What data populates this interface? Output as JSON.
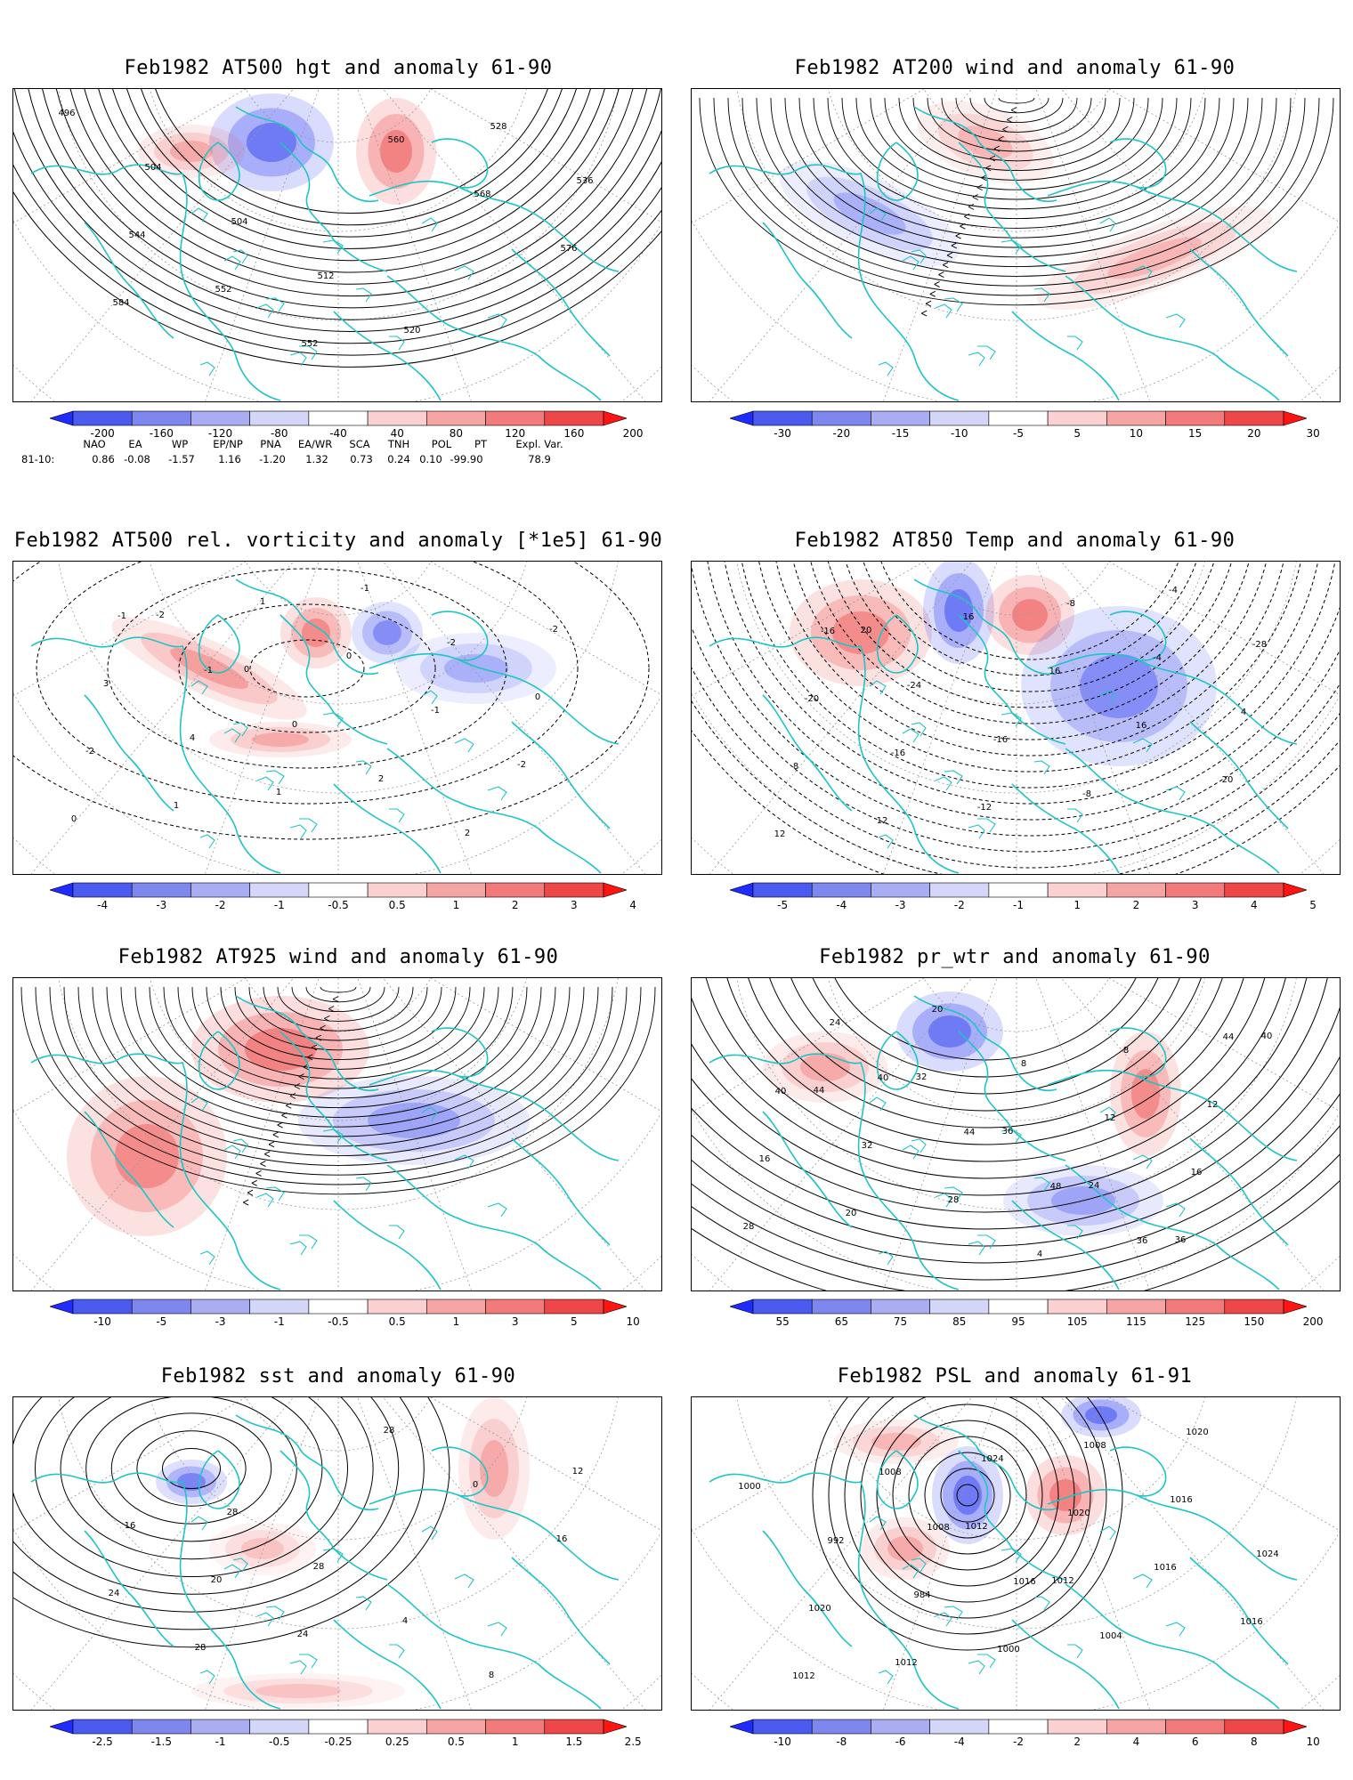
{
  "panels": [
    {
      "id": "hgt500",
      "title": "Feb1982 AT500 hgt and anomaly 61-90",
      "contour_labels": [
        "496",
        "504",
        "504",
        "512",
        "520",
        "528",
        "536",
        "544",
        "552",
        "552",
        "560",
        "568",
        "576",
        "584"
      ],
      "colorbar": {
        "ticks": [
          "-200",
          "-160",
          "-120",
          "-80",
          "-40",
          "40",
          "80",
          "120",
          "160",
          "200"
        ],
        "colors": [
          "#1f2bff",
          "#4b5bf0",
          "#7d87ee",
          "#a9aef3",
          "#d4d6f8",
          "#ffffff",
          "#fbd0d0",
          "#f6a5a5",
          "#f27a7a",
          "#ee4747",
          "#ff1414"
        ]
      }
    },
    {
      "id": "wind200",
      "title": "Feb1982 AT200 wind and anomaly 61-90",
      "contour_labels": [],
      "colorbar": {
        "ticks": [
          "-30",
          "-20",
          "-15",
          "-10",
          "-5",
          "5",
          "10",
          "15",
          "20",
          "30"
        ],
        "colors": [
          "#1f2bff",
          "#4b5bf0",
          "#7d87ee",
          "#a9aef3",
          "#d4d6f8",
          "#ffffff",
          "#fbd0d0",
          "#f6a5a5",
          "#f27a7a",
          "#ee4747",
          "#ff1414"
        ]
      }
    },
    {
      "id": "vort500",
      "title": "Feb1982 AT500 rel. vorticity and anomaly [*1e5] 61-90",
      "contour_labels": [
        "-1",
        "-1",
        "0",
        "2",
        "2",
        "-2",
        "3",
        "4",
        "1",
        "-1",
        "-2",
        "0",
        "-2",
        "1",
        "1",
        "0",
        "-1",
        "-2",
        "0",
        "-2",
        "0"
      ],
      "colorbar": {
        "ticks": [
          "-4",
          "-3",
          "-2",
          "-1",
          "-0.5",
          "0.5",
          "1",
          "2",
          "3",
          "4"
        ],
        "colors": [
          "#1f2bff",
          "#4b5bf0",
          "#7d87ee",
          "#a9aef3",
          "#d4d6f8",
          "#ffffff",
          "#fbd0d0",
          "#f6a5a5",
          "#f27a7a",
          "#ee4747",
          "#ff1414"
        ]
      }
    },
    {
      "id": "temp850",
      "title": "Feb1982 AT850 Temp and anomaly 61-90",
      "contour_labels": [
        "-16",
        "-24",
        "-16",
        "-8",
        "-4",
        "-28",
        "-20",
        "-16",
        "-12",
        "-8",
        "-4",
        "4",
        "8",
        "12",
        "16",
        "16",
        "16",
        "20",
        "12",
        "20"
      ],
      "colorbar": {
        "ticks": [
          "-5",
          "-4",
          "-3",
          "-2",
          "-1",
          "1",
          "2",
          "3",
          "4",
          "5"
        ],
        "colors": [
          "#1f2bff",
          "#4b5bf0",
          "#7d87ee",
          "#a9aef3",
          "#d4d6f8",
          "#ffffff",
          "#fbd0d0",
          "#f6a5a5",
          "#f27a7a",
          "#ee4747",
          "#ff1414"
        ]
      }
    },
    {
      "id": "wind925",
      "title": "Feb1982 AT925 wind and anomaly 61-90",
      "contour_labels": [],
      "colorbar": {
        "ticks": [
          "-10",
          "-5",
          "-3",
          "-1",
          "-0.5",
          "0.5",
          "1",
          "3",
          "5",
          "10"
        ],
        "colors": [
          "#1f2bff",
          "#4b5bf0",
          "#7d87ee",
          "#a9aef3",
          "#d4d6f8",
          "#ffffff",
          "#fbd0d0",
          "#f6a5a5",
          "#f27a7a",
          "#ee4747",
          "#ff1414"
        ]
      }
    },
    {
      "id": "prwtr",
      "title": "Feb1982 pr_wtr and anomaly 61-90",
      "contour_labels": [
        "40",
        "44",
        "48",
        "36",
        "44",
        "40",
        "32",
        "28",
        "4",
        "8",
        "12",
        "16",
        "20",
        "20",
        "8",
        "12",
        "16",
        "28",
        "24",
        "32",
        "36",
        "24",
        "36",
        "40",
        "44"
      ],
      "colorbar": {
        "ticks": [
          "55",
          "65",
          "75",
          "85",
          "95",
          "105",
          "115",
          "125",
          "150",
          "200"
        ],
        "colors": [
          "#1f2bff",
          "#4b5bf0",
          "#7d87ee",
          "#a9aef3",
          "#d4d6f8",
          "#ffffff",
          "#fbd0d0",
          "#f6a5a5",
          "#f27a7a",
          "#ee4747",
          "#ff1414"
        ]
      }
    },
    {
      "id": "sst",
      "title": "Feb1982 sst and anomaly 61-90",
      "contour_labels": [
        "28",
        "28",
        "4",
        "8",
        "12",
        "16",
        "20",
        "24",
        "28",
        "0",
        "16",
        "24",
        "28"
      ],
      "colorbar": {
        "ticks": [
          "-2.5",
          "-1.5",
          "-1",
          "-0.5",
          "-0.25",
          "0.25",
          "0.5",
          "1",
          "1.5",
          "2.5"
        ],
        "colors": [
          "#1f2bff",
          "#4b5bf0",
          "#7d87ee",
          "#a9aef3",
          "#d4d6f8",
          "#ffffff",
          "#fbd0d0",
          "#f6a5a5",
          "#f27a7a",
          "#ee4747",
          "#ff1414"
        ]
      }
    },
    {
      "id": "psl",
      "title": "Feb1982 PSL and anomaly 61-91",
      "contour_labels": [
        "1008",
        "1016",
        "1004",
        "1020",
        "1000",
        "992",
        "984",
        "1000",
        "1008",
        "1016",
        "1024",
        "1020",
        "1012",
        "1024",
        "1020",
        "1016",
        "1016",
        "1012",
        "1008",
        "1012",
        "1012"
      ],
      "colorbar": {
        "ticks": [
          "-10",
          "-8",
          "-6",
          "-4",
          "-2",
          "2",
          "4",
          "6",
          "8",
          "10"
        ],
        "colors": [
          "#1f2bff",
          "#4b5bf0",
          "#7d87ee",
          "#a9aef3",
          "#d4d6f8",
          "#ffffff",
          "#fbd0d0",
          "#f6a5a5",
          "#f27a7a",
          "#ee4747",
          "#ff1414"
        ]
      }
    }
  ],
  "teleconnections": {
    "headers": [
      "NAO",
      "EA",
      "WP",
      "EP/NP",
      "PNA",
      "EA/WR",
      "SCA",
      "TNH",
      "POL",
      "PT",
      "Expl. Var."
    ],
    "row_label": "81-10:",
    "values": [
      "0.86",
      "-0.08",
      "-1.57",
      "1.16",
      "-1.20",
      "1.32",
      "0.73",
      "0.24",
      "0.10",
      "-99.90",
      "78.9"
    ]
  }
}
